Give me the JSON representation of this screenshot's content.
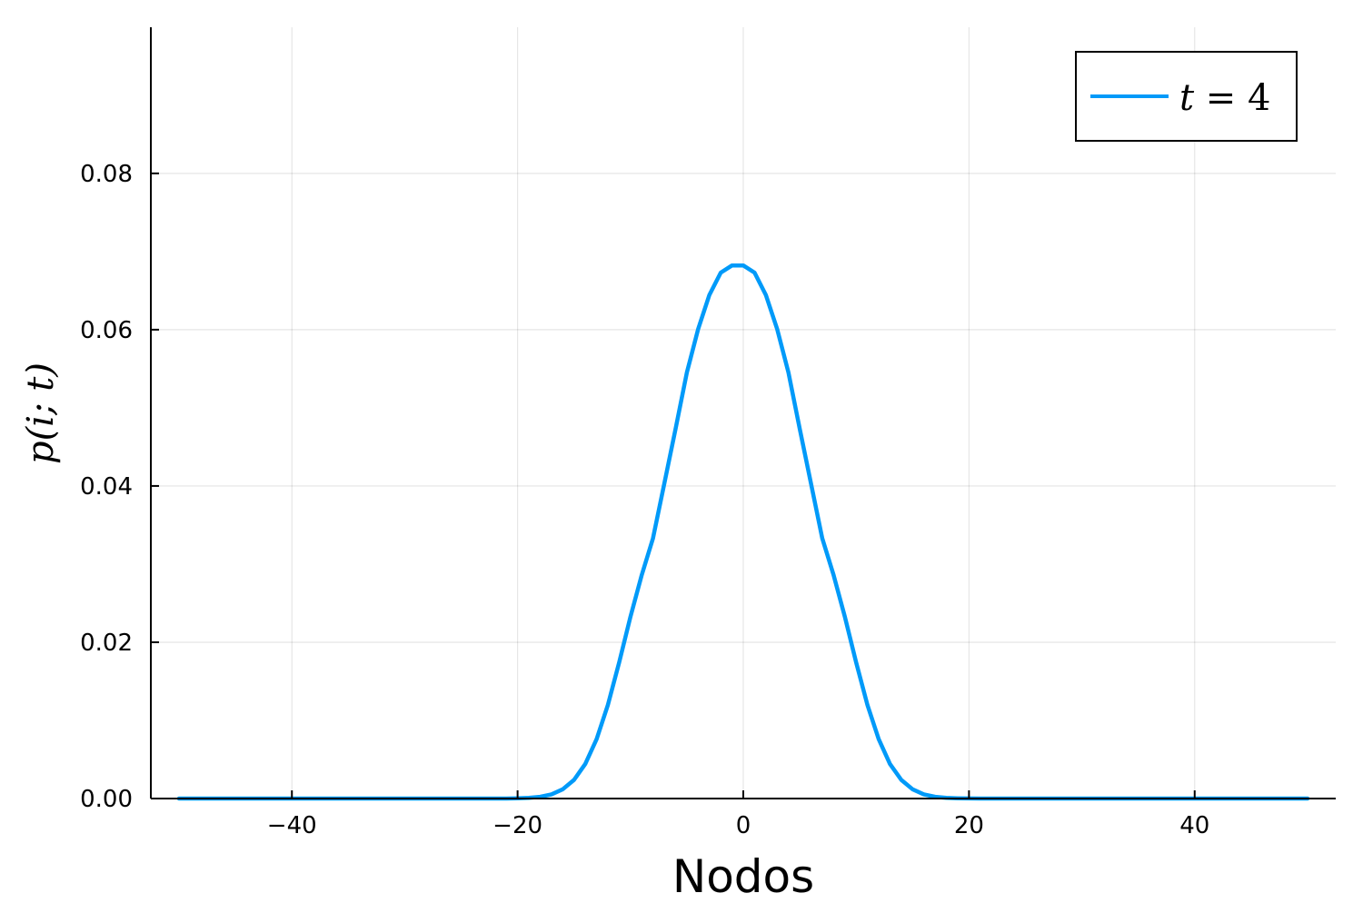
{
  "chart_data": {
    "type": "line",
    "xlabel": "Nodos",
    "ylabel": "p(i; t)",
    "xlim": [
      -52.5,
      52.5
    ],
    "ylim": [
      0,
      0.0987
    ],
    "x_ticks": [
      -40,
      -20,
      0,
      20,
      40
    ],
    "x_tick_labels": [
      "−40",
      "−20",
      "0",
      "20",
      "40"
    ],
    "y_ticks": [
      0.0,
      0.02,
      0.04,
      0.06,
      0.08
    ],
    "y_tick_labels": [
      "0.00",
      "0.02",
      "0.04",
      "0.06",
      "0.08"
    ],
    "grid": true,
    "legend_position": "top-right",
    "series": [
      {
        "name": "t = 4",
        "name_parts": {
          "var": "t",
          "rest": " = 4"
        },
        "color": "#009af9",
        "x": [
          -50,
          -49,
          -48,
          -47,
          -46,
          -45,
          -44,
          -43,
          -42,
          -41,
          -40,
          -39,
          -38,
          -37,
          -36,
          -35,
          -34,
          -33,
          -32,
          -31,
          -30,
          -29,
          -28,
          -27,
          -26,
          -25,
          -24,
          -23,
          -22,
          -21,
          -20,
          -19,
          -18,
          -17,
          -16,
          -15,
          -14,
          -13,
          -12,
          -11,
          -10,
          -9,
          -8,
          -7,
          -6,
          -5,
          -4,
          -3,
          -2,
          -1,
          0,
          1,
          2,
          3,
          4,
          5,
          6,
          7,
          8,
          9,
          10,
          11,
          12,
          13,
          14,
          15,
          16,
          17,
          18,
          19,
          20,
          21,
          22,
          23,
          24,
          25,
          26,
          27,
          28,
          29,
          30,
          31,
          32,
          33,
          34,
          35,
          36,
          37,
          38,
          39,
          40,
          41,
          42,
          43,
          44,
          45,
          46,
          47,
          48,
          49,
          50
        ],
        "y": [
          0,
          0,
          0,
          0,
          0,
          0,
          0,
          0,
          0,
          0,
          0,
          0,
          0,
          0,
          0,
          0,
          0,
          0,
          0,
          0,
          0,
          0,
          0,
          0,
          0,
          0,
          0,
          0,
          0,
          0,
          3e-05,
          8e-05,
          0.00022,
          0.00053,
          0.00118,
          0.00238,
          0.00443,
          0.0076,
          0.01199,
          0.01741,
          0.02325,
          0.02859,
          0.03329,
          0.04032,
          0.04733,
          0.05451,
          0.06007,
          0.06445,
          0.0673,
          0.06822,
          0.06822,
          0.0673,
          0.06445,
          0.06007,
          0.05451,
          0.04733,
          0.04032,
          0.03329,
          0.02859,
          0.02325,
          0.01741,
          0.01199,
          0.0076,
          0.00443,
          0.00238,
          0.00118,
          0.00053,
          0.00022,
          8e-05,
          3e-05,
          1e-05,
          0,
          0,
          0,
          0,
          0,
          0,
          0,
          0,
          0,
          0,
          0,
          0,
          0,
          0,
          0,
          0,
          0,
          0,
          0,
          0,
          0,
          0,
          0,
          0,
          0,
          0,
          0,
          0,
          0,
          0
        ]
      }
    ]
  }
}
